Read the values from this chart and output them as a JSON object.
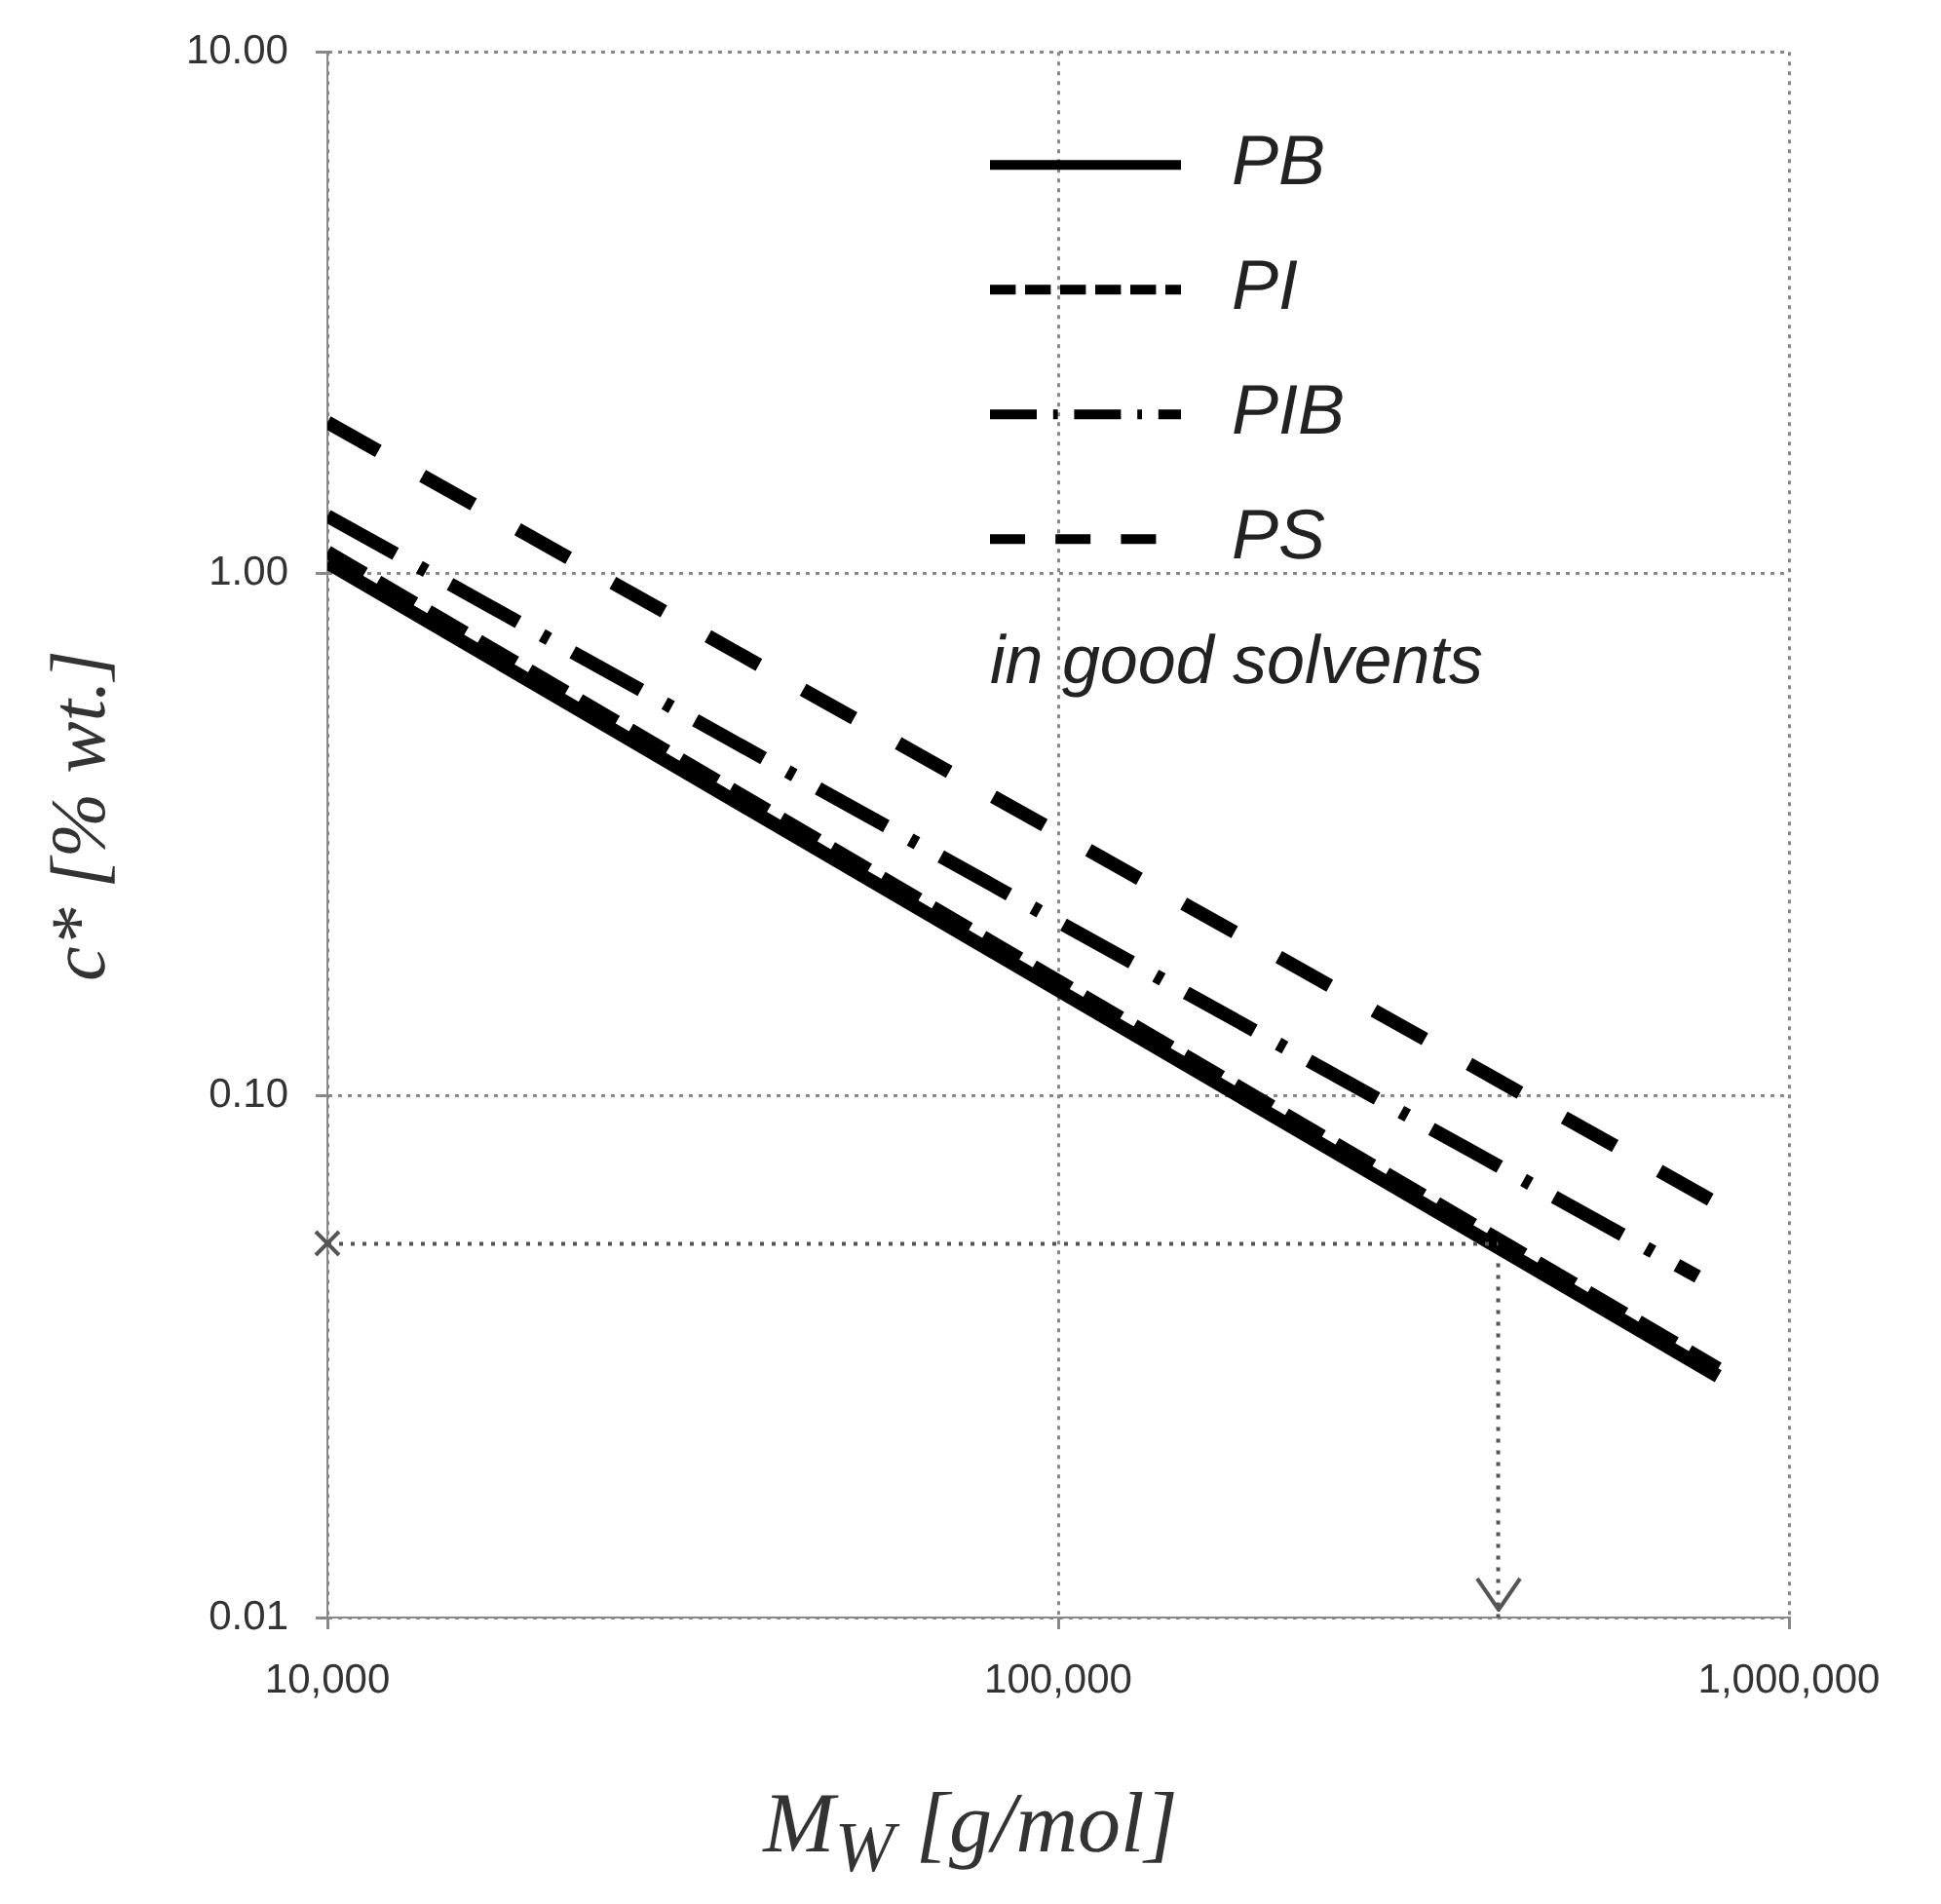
{
  "chart_data": {
    "type": "line",
    "xlabel": "M$_{W}$  [g/mol]",
    "ylabel": "c* [% wt.]",
    "log": "xy",
    "xlim": [
      10000,
      1000000
    ],
    "xticks": [
      {
        "value": 10000,
        "label": "10,000"
      },
      {
        "value": 100000,
        "label": "100,000"
      },
      {
        "value": 1000000,
        "label": "1,000,000"
      }
    ],
    "ylim": [
      0.01,
      10
    ],
    "yticks": [
      {
        "value": 0.01,
        "label": "0.01"
      },
      {
        "value": 0.1,
        "label": "0.10"
      },
      {
        "value": 1,
        "label": "1.00"
      },
      {
        "value": 10,
        "label": "10.00"
      }
    ],
    "grid": true,
    "legend": "top right",
    "marker": "none",
    "series": [
      {
        "name": "PB",
        "color": "#000000",
        "line_style": "solid",
        "x": [
          10000,
          800000
        ],
        "values": [
          1.05,
          0.029
        ]
      },
      {
        "name": "PI",
        "color": "#000000",
        "line_style": "dashed",
        "x": [
          10000,
          800000
        ],
        "values": [
          1.1,
          0.03
        ]
      },
      {
        "name": "PIB",
        "color": "#000000",
        "line_style": "dashdot",
        "x": [
          10000,
          750000
        ],
        "values": [
          1.29,
          0.045
        ]
      },
      {
        "name": "PS",
        "color": "#000000",
        "line_style": "longdash",
        "x": [
          10000,
          800000
        ],
        "values": [
          1.95,
          0.062
        ]
      }
    ],
    "ref_lines": [
      {
        "axis": "y",
        "value": 0.052,
        "color": "#555555",
        "line_style": "dotted"
      },
      {
        "axis": "x",
        "value": 400000,
        "color": "#555555",
        "line_style": "dotted"
      }
    ],
    "annotations": [
      "in good solvents"
    ]
  }
}
